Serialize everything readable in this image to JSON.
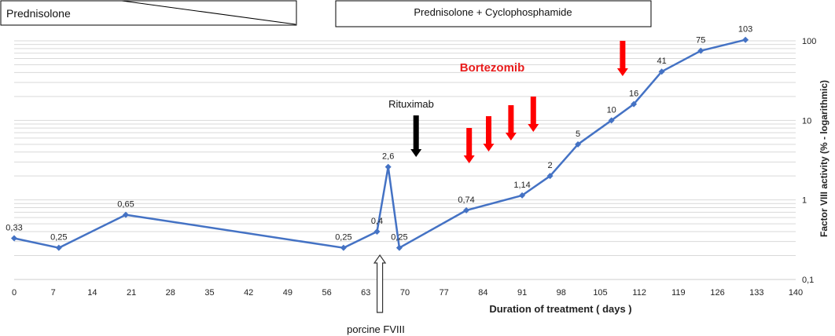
{
  "colors": {
    "series": "#4472C4",
    "grid": "#d9d9d9",
    "bortezomib_arrow": "#ff0000",
    "rituximab_arrow": "#000000",
    "bortezomib_label": "#e81c1c"
  },
  "treatment_boxes": {
    "prednisolone": "Prednisolone",
    "combo": "Prednisolone + Cyclophosphamide"
  },
  "annotations": {
    "bortezomib": "Bortezomib",
    "rituximab": "Rituximab",
    "porcine": "porcine FVIII"
  },
  "chart_data": {
    "type": "line",
    "xlabel": "Duration of treatment ( days )",
    "ylabel": "Factor VIII activity  (% - logarithmic)",
    "x_ticks": [
      0,
      7,
      14,
      21,
      28,
      35,
      42,
      49,
      56,
      63,
      70,
      77,
      84,
      91,
      98,
      105,
      112,
      119,
      126,
      133,
      140
    ],
    "xlim": [
      0,
      140
    ],
    "y_scale": "log",
    "ylim": [
      0.1,
      100
    ],
    "y_ticks": [
      0.1,
      1,
      10,
      100
    ],
    "y_tick_labels": [
      "0,1",
      "1",
      "10",
      "100"
    ],
    "y_axis_side": "right",
    "grid": "horizontal",
    "series": [
      {
        "marker": "diamond",
        "points": [
          {
            "x": 0,
            "y": 0.33,
            "label": "0,33"
          },
          {
            "x": 8,
            "y": 0.25,
            "label": "0,25"
          },
          {
            "x": 20,
            "y": 0.65,
            "label": "0,65"
          },
          {
            "x": 59,
            "y": 0.25,
            "label": "0,25"
          },
          {
            "x": 65,
            "y": 0.4,
            "label": "0,4"
          },
          {
            "x": 67,
            "y": 2.6,
            "label": "2,6"
          },
          {
            "x": 69,
            "y": 0.25,
            "label": "0,25"
          },
          {
            "x": 81,
            "y": 0.74,
            "label": "0,74"
          },
          {
            "x": 91,
            "y": 1.14,
            "label": "1,14"
          },
          {
            "x": 96,
            "y": 2,
            "label": "2"
          },
          {
            "x": 101,
            "y": 5,
            "label": "5"
          },
          {
            "x": 107,
            "y": 10,
            "label": "10"
          },
          {
            "x": 111,
            "y": 16,
            "label": "16"
          },
          {
            "x": 116,
            "y": 41,
            "label": "41"
          },
          {
            "x": 123,
            "y": 75,
            "label": "75"
          },
          {
            "x": 131,
            "y": 103,
            "label": "103"
          }
        ]
      }
    ],
    "bortezomib_doses_days": [
      81.5,
      85,
      89,
      93,
      109
    ],
    "rituximab_day": 72,
    "porcine_fviii_day": 65.5
  }
}
